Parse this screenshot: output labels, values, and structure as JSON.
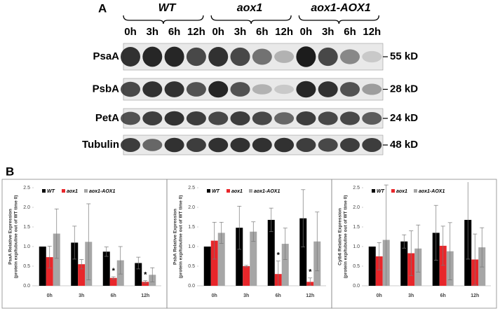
{
  "blot": {
    "panel_label": "A",
    "groups": [
      "WT",
      "aox1",
      "aox1-AOX1"
    ],
    "timepoints": [
      "0h",
      "3h",
      "6h",
      "12h"
    ],
    "rows": [
      {
        "protein": "PsaA",
        "size": "55 kD"
      },
      {
        "protein": "PsbA",
        "size": "28 kD"
      },
      {
        "protein": "PetA",
        "size": "24 kD"
      },
      {
        "protein": "Tubulin",
        "size": "48 kD"
      }
    ]
  },
  "panel_b_label": "B",
  "chart_data": [
    {
      "type": "bar",
      "ylabel": [
        "PsaA Relative Expression",
        "(protein exp/tubuline out of WT time 0)"
      ],
      "categories": [
        "0h",
        "3h",
        "6h",
        "12h"
      ],
      "ylim": [
        0,
        2.5
      ],
      "yticks": [
        {
          "value": 0,
          "label": "0.0"
        },
        {
          "value": 0.5,
          "label": "0.5"
        },
        {
          "value": 1,
          "label": "1.0"
        },
        {
          "value": 1.5,
          "label": "1.5"
        },
        {
          "value": 2,
          "label": "2.0"
        },
        {
          "value": 2.5,
          "label": "2.5"
        }
      ],
      "legend": "top",
      "series": [
        {
          "name": "WT",
          "color": "#000000",
          "values": [
            1.0,
            1.1,
            0.87,
            0.58
          ],
          "errors": [
            0,
            0.42,
            0.12,
            0.15
          ]
        },
        {
          "name": "aox1",
          "color": "#e8262a",
          "values": [
            0.73,
            0.55,
            0.2,
            0.1
          ],
          "errors": [
            0.28,
            0.12,
            0.03,
            0.03
          ]
        },
        {
          "name": "aox1-AOX1",
          "color": "#a6a6a6",
          "values": [
            1.33,
            1.12,
            0.65,
            0.28
          ],
          "errors": [
            0.63,
            0.97,
            0.35,
            0.18
          ]
        }
      ],
      "annotations": [
        {
          "text": "*",
          "category": "6h",
          "series": "aox1"
        },
        {
          "text": "*",
          "category": "12h",
          "series": "aox1"
        }
      ]
    },
    {
      "type": "bar",
      "ylabel": [
        "PsbA Relative Expression",
        "(protein exp/tubuline out of WT time 0)"
      ],
      "categories": [
        "0h",
        "3h",
        "6h",
        "12h"
      ],
      "ylim": [
        0,
        2.5
      ],
      "yticks": [
        {
          "value": 0,
          "label": "0.0"
        },
        {
          "value": 0.5,
          "label": "0.5"
        },
        {
          "value": 1,
          "label": "1.0"
        },
        {
          "value": 1.5,
          "label": "1.5"
        },
        {
          "value": 2,
          "label": "2.0"
        },
        {
          "value": 2.5,
          "label": "2.5"
        }
      ],
      "legend": "top",
      "series": [
        {
          "name": "WT",
          "color": "#000000",
          "values": [
            1.0,
            1.48,
            1.68,
            1.72
          ],
          "errors": [
            0,
            0.55,
            0.3,
            0.73
          ]
        },
        {
          "name": "aox1",
          "color": "#e8262a",
          "values": [
            1.15,
            0.5,
            0.3,
            0.1
          ],
          "errors": [
            0.47,
            0.02,
            0.33,
            0.1
          ]
        },
        {
          "name": "aox1-AOX1",
          "color": "#a6a6a6",
          "values": [
            1.35,
            1.38,
            1.07,
            1.13
          ],
          "errors": [
            0.27,
            0.25,
            0.4,
            0.75
          ]
        }
      ],
      "annotations": [
        {
          "text": "*",
          "category": "6h",
          "series": "aox1"
        },
        {
          "text": "*",
          "category": "12h",
          "series": "aox1"
        }
      ]
    },
    {
      "type": "bar",
      "ylabel": [
        "Cytb6 Relative Expression",
        "(protein exp/tubuline out of WT time 0)"
      ],
      "categories": [
        "0h",
        "3h",
        "6h",
        "12h"
      ],
      "ylim": [
        0,
        2.5
      ],
      "yticks": [
        {
          "value": 0,
          "label": "0.0"
        },
        {
          "value": 0.5,
          "label": "0.5"
        },
        {
          "value": 1,
          "label": "1.0"
        },
        {
          "value": 1.5,
          "label": "1.5"
        },
        {
          "value": 2,
          "label": "2.0"
        },
        {
          "value": 2.5,
          "label": "2.5"
        }
      ],
      "legend": "top",
      "series": [
        {
          "name": "WT",
          "color": "#000000",
          "values": [
            1.0,
            1.13,
            1.35,
            1.68
          ],
          "errors": [
            0,
            0.17,
            0.7,
            1.0
          ]
        },
        {
          "name": "aox1",
          "color": "#e8262a",
          "values": [
            0.75,
            0.83,
            1.02,
            0.67
          ],
          "errors": [
            0.35,
            0.57,
            0.5,
            0.65
          ]
        },
        {
          "name": "aox1-AOX1",
          "color": "#a6a6a6",
          "values": [
            1.17,
            0.95,
            0.88,
            0.98
          ],
          "errors": [
            1.4,
            0.6,
            0.73,
            0.5
          ]
        }
      ],
      "annotations": []
    }
  ]
}
